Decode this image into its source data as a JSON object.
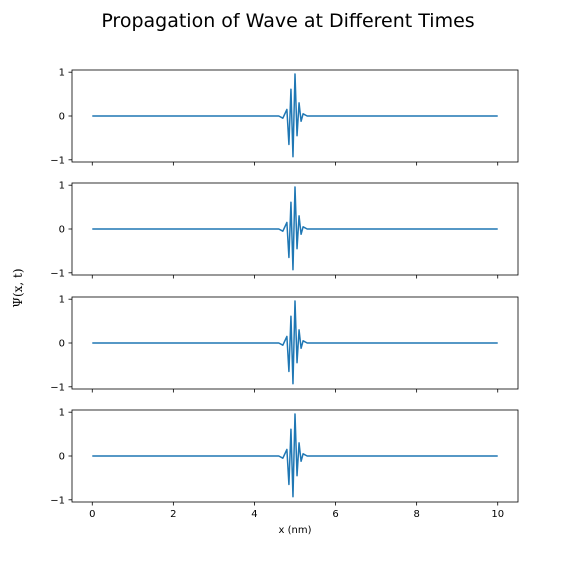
{
  "chart_data": {
    "type": "line",
    "title": "Propagation of Wave at Different Times",
    "xlabel": "x (nm)",
    "ylabel": "Ψ(x, t)",
    "xlim": [
      -0.5,
      10.5
    ],
    "ylim": [
      -1.05,
      1.05
    ],
    "x_ticks": [
      0,
      2,
      4,
      6,
      8,
      10
    ],
    "x_tick_labels": [
      "0",
      "2",
      "4",
      "6",
      "8",
      "10"
    ],
    "y_ticks": [
      1,
      0,
      -1
    ],
    "y_tick_labels": [
      "1",
      "0",
      "−1"
    ],
    "color": "#1f77b4",
    "legend": false,
    "grid": false,
    "panels": [
      {
        "x": [
          0,
          4.6,
          4.7,
          4.8,
          4.85,
          4.9,
          4.95,
          5.0,
          5.05,
          5.1,
          5.15,
          5.2,
          5.3,
          5.4,
          10
        ],
        "y": [
          0,
          0,
          -0.05,
          0.15,
          -0.65,
          0.61,
          -0.93,
          0.96,
          -0.45,
          0.3,
          -0.12,
          0.05,
          0,
          0,
          0
        ]
      },
      {
        "x": [
          0,
          4.6,
          4.7,
          4.8,
          4.85,
          4.9,
          4.95,
          5.0,
          5.05,
          5.1,
          5.15,
          5.2,
          5.3,
          5.4,
          10
        ],
        "y": [
          0,
          0,
          -0.05,
          0.15,
          -0.65,
          0.61,
          -0.93,
          0.96,
          -0.45,
          0.3,
          -0.12,
          0.05,
          0,
          0,
          0
        ]
      },
      {
        "x": [
          0,
          4.6,
          4.7,
          4.8,
          4.85,
          4.9,
          4.95,
          5.0,
          5.05,
          5.1,
          5.15,
          5.2,
          5.3,
          5.4,
          10
        ],
        "y": [
          0,
          0,
          -0.05,
          0.15,
          -0.65,
          0.61,
          -0.93,
          0.96,
          -0.45,
          0.3,
          -0.12,
          0.05,
          0,
          0,
          0
        ]
      },
      {
        "x": [
          0,
          4.6,
          4.7,
          4.8,
          4.85,
          4.9,
          4.95,
          5.0,
          5.05,
          5.1,
          5.15,
          5.2,
          5.3,
          5.4,
          10
        ],
        "y": [
          0,
          0,
          -0.05,
          0.15,
          -0.65,
          0.61,
          -0.93,
          0.96,
          -0.45,
          0.3,
          -0.12,
          0.05,
          0,
          0,
          0
        ]
      }
    ]
  }
}
